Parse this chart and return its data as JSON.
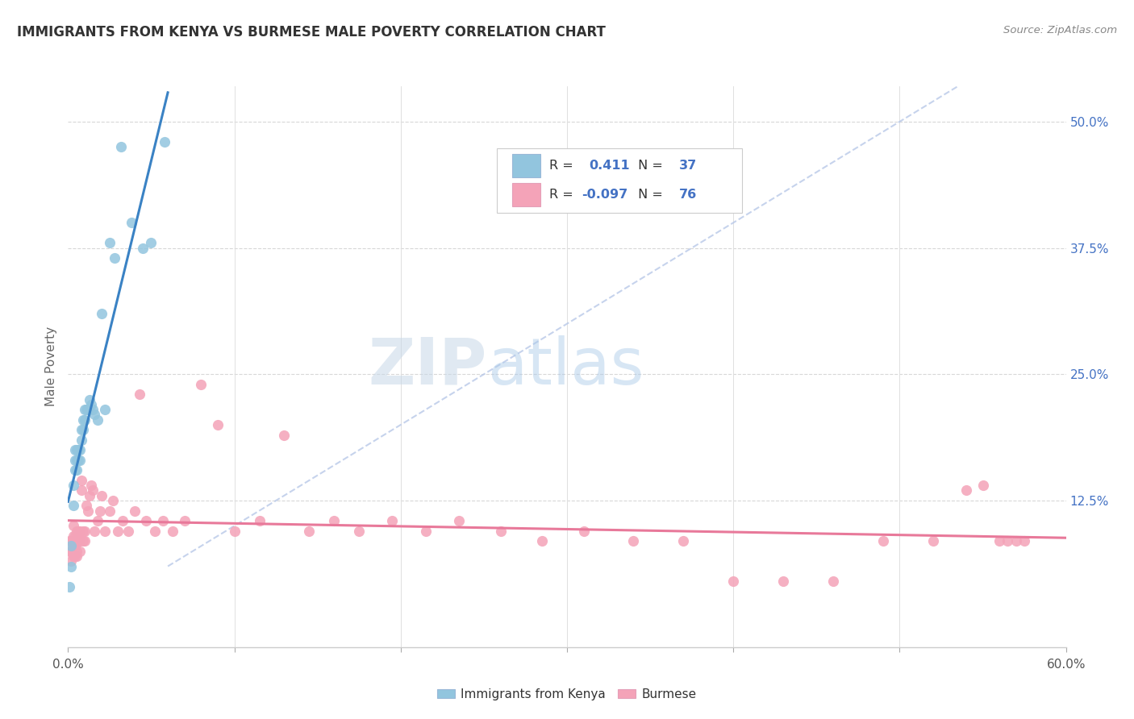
{
  "title": "IMMIGRANTS FROM KENYA VS BURMESE MALE POVERTY CORRELATION CHART",
  "source": "Source: ZipAtlas.com",
  "ylabel": "Male Poverty",
  "ytick_labels": [
    "",
    "12.5%",
    "25.0%",
    "37.5%",
    "50.0%"
  ],
  "ytick_vals": [
    0.0,
    0.125,
    0.25,
    0.375,
    0.5
  ],
  "xlim": [
    0.0,
    0.6
  ],
  "ylim": [
    -0.02,
    0.535
  ],
  "legend_label1": "Immigrants from Kenya",
  "legend_label2": "Burmese",
  "r1": "0.411",
  "n1": "37",
  "r2": "-0.097",
  "n2": "76",
  "color_kenya": "#92c5de",
  "color_burmese": "#f4a3b8",
  "color_kenya_line": "#3a82c4",
  "color_burmese_line": "#e8799a",
  "color_diag": "#b8c8e8",
  "watermark_zip": "ZIP",
  "watermark_atlas": "atlas",
  "kenya_x": [
    0.001,
    0.002,
    0.002,
    0.003,
    0.003,
    0.004,
    0.004,
    0.004,
    0.005,
    0.005,
    0.005,
    0.006,
    0.006,
    0.007,
    0.007,
    0.008,
    0.008,
    0.009,
    0.009,
    0.01,
    0.01,
    0.011,
    0.012,
    0.013,
    0.014,
    0.015,
    0.016,
    0.018,
    0.02,
    0.022,
    0.025,
    0.028,
    0.032,
    0.038,
    0.045,
    0.05,
    0.058
  ],
  "kenya_y": [
    0.04,
    0.06,
    0.08,
    0.12,
    0.14,
    0.155,
    0.165,
    0.175,
    0.155,
    0.165,
    0.175,
    0.165,
    0.175,
    0.165,
    0.175,
    0.185,
    0.195,
    0.195,
    0.205,
    0.205,
    0.215,
    0.215,
    0.215,
    0.225,
    0.22,
    0.215,
    0.21,
    0.205,
    0.31,
    0.215,
    0.38,
    0.365,
    0.475,
    0.4,
    0.375,
    0.38,
    0.48
  ],
  "burmese_x": [
    0.001,
    0.001,
    0.002,
    0.002,
    0.002,
    0.003,
    0.003,
    0.003,
    0.003,
    0.004,
    0.004,
    0.004,
    0.005,
    0.005,
    0.005,
    0.005,
    0.006,
    0.006,
    0.007,
    0.007,
    0.007,
    0.008,
    0.008,
    0.009,
    0.009,
    0.01,
    0.01,
    0.011,
    0.012,
    0.013,
    0.014,
    0.015,
    0.016,
    0.018,
    0.019,
    0.02,
    0.022,
    0.025,
    0.027,
    0.03,
    0.033,
    0.036,
    0.04,
    0.043,
    0.047,
    0.052,
    0.057,
    0.063,
    0.07,
    0.08,
    0.09,
    0.1,
    0.115,
    0.13,
    0.145,
    0.16,
    0.175,
    0.195,
    0.215,
    0.235,
    0.26,
    0.285,
    0.31,
    0.34,
    0.37,
    0.4,
    0.43,
    0.46,
    0.49,
    0.52,
    0.54,
    0.55,
    0.56,
    0.565,
    0.57,
    0.575
  ],
  "burmese_y": [
    0.075,
    0.085,
    0.065,
    0.075,
    0.085,
    0.07,
    0.08,
    0.09,
    0.1,
    0.07,
    0.08,
    0.09,
    0.07,
    0.075,
    0.085,
    0.095,
    0.085,
    0.095,
    0.075,
    0.085,
    0.095,
    0.135,
    0.145,
    0.085,
    0.095,
    0.085,
    0.095,
    0.12,
    0.115,
    0.13,
    0.14,
    0.135,
    0.095,
    0.105,
    0.115,
    0.13,
    0.095,
    0.115,
    0.125,
    0.095,
    0.105,
    0.095,
    0.115,
    0.23,
    0.105,
    0.095,
    0.105,
    0.095,
    0.105,
    0.24,
    0.2,
    0.095,
    0.105,
    0.19,
    0.095,
    0.105,
    0.095,
    0.105,
    0.095,
    0.105,
    0.095,
    0.085,
    0.095,
    0.085,
    0.085,
    0.045,
    0.045,
    0.045,
    0.085,
    0.085,
    0.135,
    0.14,
    0.085,
    0.085,
    0.085,
    0.085
  ]
}
